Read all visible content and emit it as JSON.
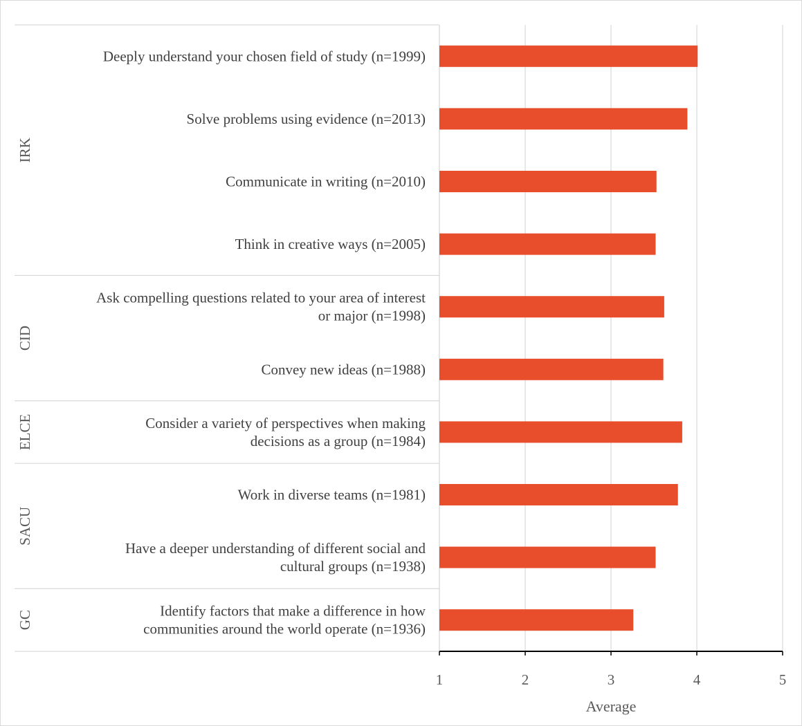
{
  "chart_data": {
    "type": "bar",
    "orientation": "horizontal",
    "title": "",
    "xlabel": "Average",
    "ylabel": "",
    "xlim": [
      1,
      5
    ],
    "xticks": [
      1,
      2,
      3,
      4,
      5
    ],
    "grid": true,
    "legend": "none",
    "bar_color": "#E84E2C",
    "categories": [
      "Deeply understand your chosen field of study (n=1999)",
      "Solve problems using evidence (n=2013)",
      "Communicate in writing (n=2010)",
      "Think in creative ways (n=2005)",
      "Ask compelling questions related to your area of interest or major (n=1998)",
      "Convey new ideas (n=1988)",
      "Consider a variety of perspectives when making decisions as a group (n=1984)",
      "Work in diverse teams (n=1981)",
      "Have a deeper understanding of different social and cultural groups (n=1938)",
      "Identify factors that make a difference in how communities around the world operate (n=1936)"
    ],
    "category_lines": [
      [
        "Deeply understand your chosen field of study (n=1999)"
      ],
      [
        "Solve problems using evidence (n=2013)"
      ],
      [
        "Communicate in writing (n=2010)"
      ],
      [
        "Think in creative ways (n=2005)"
      ],
      [
        "Ask compelling questions related to your area of interest",
        "or major (n=1998)"
      ],
      [
        "Convey new ideas (n=1988)"
      ],
      [
        "Consider a variety of perspectives when making",
        "decisions as a group (n=1984)"
      ],
      [
        "Work in diverse teams (n=1981)"
      ],
      [
        "Have a deeper understanding of different social and",
        "cultural groups (n=1938)"
      ],
      [
        "Identify factors that make a difference in how",
        "communities around the world operate (n=1936)"
      ]
    ],
    "values": [
      4.01,
      3.89,
      3.53,
      3.52,
      3.62,
      3.61,
      3.83,
      3.78,
      3.52,
      3.26
    ],
    "groups": [
      {
        "name": "IRK",
        "start": 0,
        "count": 4
      },
      {
        "name": "CID",
        "start": 4,
        "count": 2
      },
      {
        "name": "ELCE",
        "start": 6,
        "count": 1
      },
      {
        "name": "SACU",
        "start": 7,
        "count": 2
      },
      {
        "name": "GC",
        "start": 9,
        "count": 1
      }
    ]
  }
}
